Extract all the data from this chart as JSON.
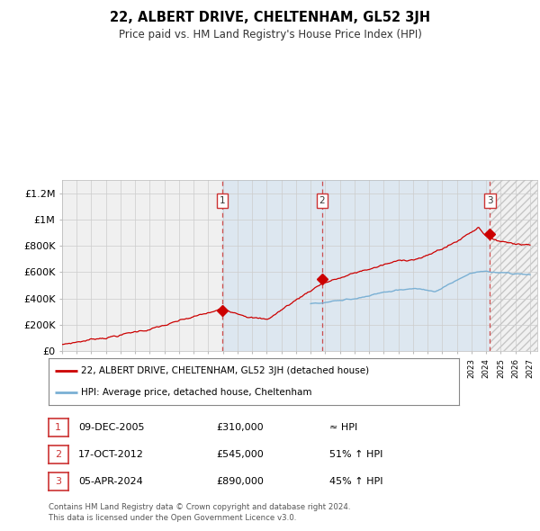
{
  "title": "22, ALBERT DRIVE, CHELTENHAM, GL52 3JH",
  "subtitle": "Price paid vs. HM Land Registry's House Price Index (HPI)",
  "ylim": [
    0,
    1300000
  ],
  "yticks": [
    0,
    200000,
    400000,
    600000,
    800000,
    1000000,
    1200000
  ],
  "ytick_labels": [
    "£0",
    "£200K",
    "£400K",
    "£600K",
    "£800K",
    "£1M",
    "£1.2M"
  ],
  "xlim_start": 1995.0,
  "xlim_end": 2027.5,
  "sale_dates": [
    2005.94,
    2012.79,
    2024.26
  ],
  "sale_prices": [
    310000,
    545000,
    890000
  ],
  "sale_labels": [
    "1",
    "2",
    "3"
  ],
  "red_line_color": "#cc0000",
  "blue_line_color": "#7ab0d4",
  "shade_color": "#ddeeff",
  "legend_label_red": "22, ALBERT DRIVE, CHELTENHAM, GL52 3JH (detached house)",
  "legend_label_blue": "HPI: Average price, detached house, Cheltenham",
  "table_rows": [
    [
      "1",
      "09-DEC-2005",
      "£310,000",
      "≈ HPI"
    ],
    [
      "2",
      "17-OCT-2012",
      "£545,000",
      "51% ↑ HPI"
    ],
    [
      "3",
      "05-APR-2024",
      "£890,000",
      "45% ↑ HPI"
    ]
  ],
  "footer": "Contains HM Land Registry data © Crown copyright and database right 2024.\nThis data is licensed under the Open Government Licence v3.0.",
  "background_color": "#ffffff",
  "plot_bg_color": "#f0f0f0"
}
